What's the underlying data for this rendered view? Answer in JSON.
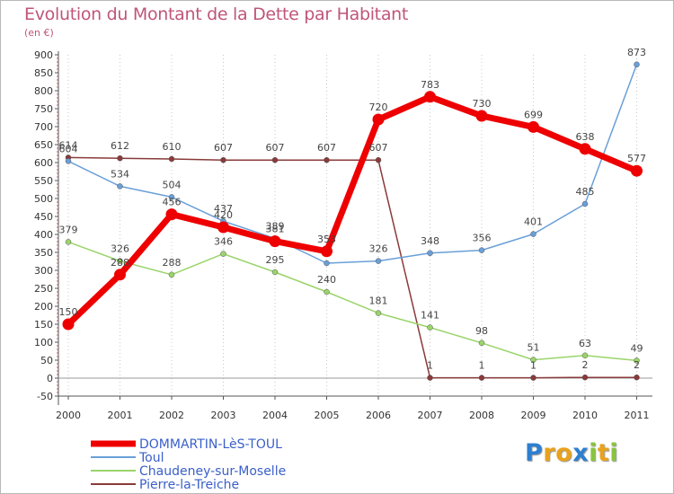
{
  "title": "Evolution du Montant de la Dette par Habitant",
  "unit": "(en €)",
  "logo": {
    "text": "Proxiti",
    "letters": [
      {
        "ch": "P",
        "color": "#2d7fd0"
      },
      {
        "ch": "r",
        "color": "#e8a21c"
      },
      {
        "ch": "o",
        "color": "#e8a21c"
      },
      {
        "ch": "x",
        "color": "#2d7fd0"
      },
      {
        "ch": "i",
        "color": "#8ac43f"
      },
      {
        "ch": "t",
        "color": "#e8a21c"
      },
      {
        "ch": "i",
        "color": "#8ac43f"
      }
    ]
  },
  "chart_data": {
    "type": "line",
    "title": "Evolution du Montant de la Dette par Habitant",
    "ylabel": "(en €)",
    "xlabel": "",
    "x": [
      "2000",
      "2001",
      "2002",
      "2003",
      "2004",
      "2005",
      "2006",
      "2007",
      "2008",
      "2009",
      "2010",
      "2011"
    ],
    "ylim": [
      -50,
      900
    ],
    "yticks": [
      -50,
      0,
      50,
      100,
      150,
      200,
      250,
      300,
      350,
      400,
      450,
      500,
      550,
      600,
      650,
      700,
      750,
      800,
      850,
      900
    ],
    "grid": "vertical dotted at each year",
    "legend_position": "bottom-left",
    "series": [
      {
        "name": "DOMMARTIN-LèS-TOUL",
        "color": "#ee0000",
        "values": [
          150,
          288,
          456,
          420,
          381,
          353,
          720,
          783,
          730,
          699,
          638,
          577
        ],
        "labels": [
          "150",
          "288",
          "456",
          "420",
          "381",
          "353",
          "720",
          "783",
          "730",
          "699",
          "638",
          "577"
        ]
      },
      {
        "name": "Toul",
        "color": "#6a9fd8",
        "values": [
          604,
          534,
          504,
          437,
          389,
          320,
          326,
          348,
          356,
          401,
          485,
          873
        ],
        "labels": [
          "604",
          "534",
          "504",
          "437",
          "389",
          "",
          "326",
          "348",
          "356",
          "401",
          "485",
          "873"
        ]
      },
      {
        "name": "Chaudeney-sur-Moselle",
        "color": "#9ad46a",
        "values": [
          379,
          326,
          288,
          346,
          295,
          240,
          181,
          141,
          98,
          51,
          63,
          49
        ],
        "labels": [
          "379",
          "326",
          "288",
          "346",
          "295",
          "240",
          "181",
          "141",
          "98",
          "51",
          "63",
          "49"
        ]
      },
      {
        "name": "Pierre-la-Treiche",
        "color": "#8a3a3a",
        "values": [
          614,
          612,
          610,
          607,
          607,
          607,
          607,
          1,
          1,
          1,
          2,
          2
        ],
        "labels": [
          "614",
          "612",
          "610",
          "607",
          "607",
          "607",
          "607",
          "1",
          "1",
          "1",
          "2",
          "2"
        ]
      }
    ]
  }
}
